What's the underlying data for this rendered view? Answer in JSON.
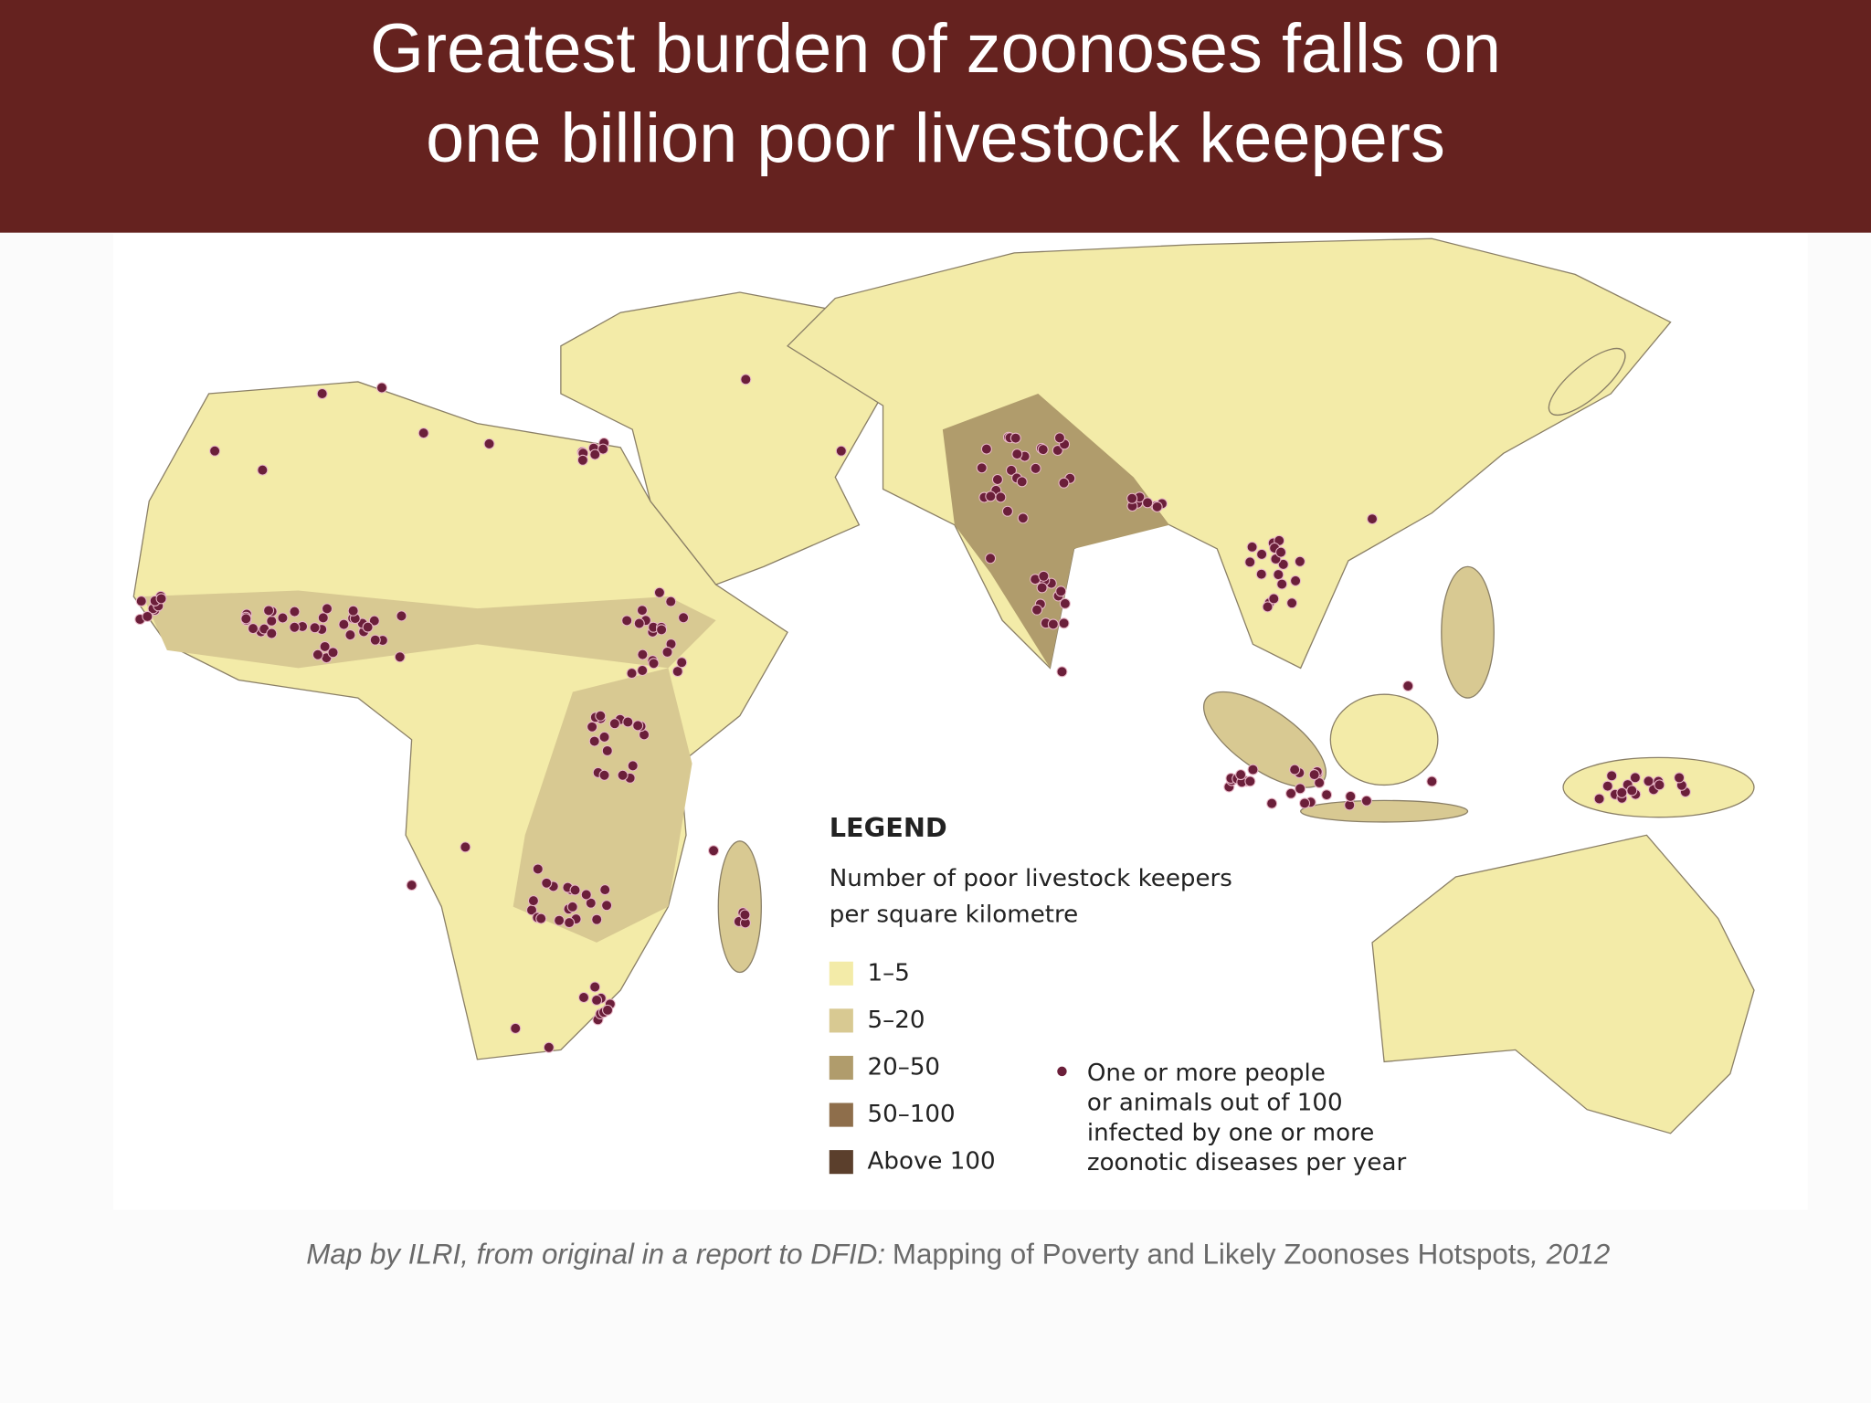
{
  "title": {
    "lines": [
      "Greatest burden of zoonoses falls on",
      "one billion poor livestock keepers"
    ]
  },
  "legend": {
    "heading": "LEGEND",
    "subtitle_lines": [
      "Number of poor livestock keepers",
      "per square kilometre"
    ],
    "items": [
      {
        "label": "1–5",
        "color": "#f3eba8"
      },
      {
        "label": "5–20",
        "color": "#d8c992"
      },
      {
        "label": "20–50",
        "color": "#b09c6c"
      },
      {
        "label": "50–100",
        "color": "#8e6e4b"
      },
      {
        "label": "Above 100",
        "color": "#5b3f2c"
      }
    ],
    "dot_note_lines": [
      "One or more people",
      "or animals out of 100",
      "infected by one or more",
      "zoonotic diseases per year"
    ],
    "dot_color": "#6b1f3a"
  },
  "caption": {
    "parts": [
      {
        "text": "Map by ILRI, from original in a report to DFID:",
        "italic": true
      },
      {
        "text": "Mapping of Poverty and Likely Zoonoses Hotspots",
        "italic": false
      },
      {
        "text": ", 2012",
        "italic": true
      }
    ]
  }
}
